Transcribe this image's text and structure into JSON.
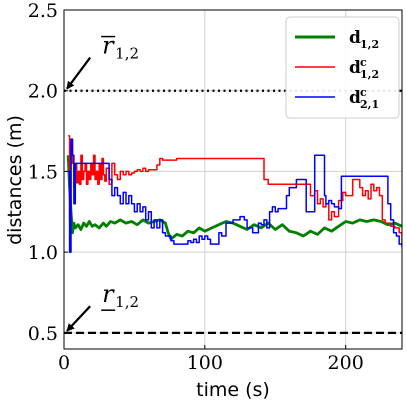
{
  "chart_data": {
    "type": "line",
    "xlabel": "time (s)",
    "ylabel": "distances (m)",
    "xlim": [
      0,
      240
    ],
    "ylim": [
      0.4,
      2.5
    ],
    "xticks": [
      "0",
      "100",
      "200"
    ],
    "xtick_values": [
      0,
      100,
      200
    ],
    "yticks": [
      "0.5",
      "1.0",
      "1.5",
      "2.0",
      "2.5"
    ],
    "ytick_values": [
      0.5,
      1.0,
      1.5,
      2.0,
      2.5
    ],
    "grid": true,
    "legend_position": "top-right",
    "legend": [
      {
        "base": "d",
        "sup": "",
        "sub": "1,2",
        "color": "#008000",
        "width": 3
      },
      {
        "base": "d",
        "sup": "c",
        "sub": "1,2",
        "color": "#ff0000",
        "width": 1.6
      },
      {
        "base": "d",
        "sup": "c",
        "sub": "2,1",
        "color": "#0000ff",
        "width": 1.6
      }
    ],
    "hlines": [
      {
        "y": 2.0,
        "style": "dotted",
        "color": "#000000"
      },
      {
        "y": 0.5,
        "style": "dashed",
        "color": "#000000"
      }
    ],
    "annotations": [
      {
        "base": "r",
        "sub": "1,2",
        "accent": "overline",
        "arrow_to": [
          0,
          2.0
        ],
        "text_at": [
          20,
          2.23
        ]
      },
      {
        "base": "r",
        "sub": "1,2",
        "accent": "underline",
        "arrow_to": [
          0,
          0.5
        ],
        "text_at": [
          20,
          0.69
        ]
      }
    ],
    "series": [
      {
        "color": "#008000",
        "width": 2.8,
        "step": false,
        "points": [
          [
            3,
            1.6
          ],
          [
            4,
            1.4
          ],
          [
            5,
            1.25
          ],
          [
            6,
            1.12
          ],
          [
            7,
            1.18
          ],
          [
            8,
            1.15
          ],
          [
            10,
            1.17
          ],
          [
            12,
            1.14
          ],
          [
            14,
            1.18
          ],
          [
            16,
            1.16
          ],
          [
            18,
            1.19
          ],
          [
            20,
            1.16
          ],
          [
            22,
            1.17
          ],
          [
            25,
            1.15
          ],
          [
            28,
            1.18
          ],
          [
            30,
            1.16
          ],
          [
            33,
            1.19
          ],
          [
            36,
            1.18
          ],
          [
            40,
            1.2
          ],
          [
            44,
            1.18
          ],
          [
            48,
            1.19
          ],
          [
            52,
            1.17
          ],
          [
            56,
            1.2
          ],
          [
            60,
            1.18
          ],
          [
            64,
            1.19
          ],
          [
            68,
            1.2
          ],
          [
            72,
            1.18
          ],
          [
            74,
            1.12
          ],
          [
            76,
            1.08
          ],
          [
            80,
            1.11
          ],
          [
            84,
            1.1
          ],
          [
            88,
            1.13
          ],
          [
            92,
            1.12
          ],
          [
            96,
            1.15
          ],
          [
            100,
            1.13
          ],
          [
            105,
            1.15
          ],
          [
            110,
            1.17
          ],
          [
            115,
            1.19
          ],
          [
            120,
            1.18
          ],
          [
            125,
            1.16
          ],
          [
            130,
            1.14
          ],
          [
            135,
            1.17
          ],
          [
            140,
            1.15
          ],
          [
            145,
            1.18
          ],
          [
            150,
            1.14
          ],
          [
            155,
            1.17
          ],
          [
            160,
            1.13
          ],
          [
            165,
            1.12
          ],
          [
            170,
            1.1
          ],
          [
            175,
            1.13
          ],
          [
            180,
            1.11
          ],
          [
            185,
            1.15
          ],
          [
            190,
            1.13
          ],
          [
            195,
            1.16
          ],
          [
            200,
            1.19
          ],
          [
            205,
            1.18
          ],
          [
            210,
            1.2
          ],
          [
            215,
            1.19
          ],
          [
            220,
            1.2
          ],
          [
            225,
            1.19
          ],
          [
            230,
            1.17
          ],
          [
            235,
            1.18
          ],
          [
            240,
            1.16
          ]
        ]
      },
      {
        "color": "#ff0000",
        "width": 1.5,
        "step": true,
        "points": [
          [
            3,
            1.72
          ],
          [
            4,
            1.2
          ],
          [
            5,
            1.68
          ],
          [
            6,
            1.55
          ],
          [
            7,
            1.4
          ],
          [
            8,
            1.55
          ],
          [
            9,
            1.43
          ],
          [
            10,
            1.5
          ],
          [
            11,
            1.42
          ],
          [
            12,
            1.6
          ],
          [
            13,
            1.45
          ],
          [
            14,
            1.5
          ],
          [
            15,
            1.55
          ],
          [
            16,
            1.42
          ],
          [
            17,
            1.5
          ],
          [
            18,
            1.45
          ],
          [
            19,
            1.55
          ],
          [
            20,
            1.48
          ],
          [
            21,
            1.6
          ],
          [
            22,
            1.45
          ],
          [
            23,
            1.5
          ],
          [
            24,
            1.42
          ],
          [
            25,
            1.55
          ],
          [
            26,
            1.45
          ],
          [
            27,
            1.58
          ],
          [
            28,
            1.48
          ],
          [
            29,
            1.44
          ],
          [
            30,
            1.52
          ],
          [
            32,
            1.42
          ],
          [
            34,
            1.55
          ],
          [
            36,
            1.48
          ],
          [
            38,
            1.45
          ],
          [
            40,
            1.5
          ],
          [
            42,
            1.48
          ],
          [
            44,
            1.5
          ],
          [
            46,
            1.48
          ],
          [
            48,
            1.49
          ],
          [
            50,
            1.5
          ],
          [
            52,
            1.51
          ],
          [
            54,
            1.5
          ],
          [
            56,
            1.52
          ],
          [
            58,
            1.5
          ],
          [
            60,
            1.51
          ],
          [
            66,
            1.54
          ],
          [
            68,
            1.58
          ],
          [
            70,
            1.57
          ],
          [
            80,
            1.58
          ],
          [
            90,
            1.58
          ],
          [
            100,
            1.58
          ],
          [
            110,
            1.58
          ],
          [
            120,
            1.58
          ],
          [
            130,
            1.58
          ],
          [
            140,
            1.58
          ],
          [
            142,
            1.45
          ],
          [
            145,
            1.42
          ],
          [
            150,
            1.42
          ],
          [
            160,
            1.42
          ],
          [
            170,
            1.42
          ],
          [
            175,
            1.35
          ],
          [
            178,
            1.38
          ],
          [
            180,
            1.3
          ],
          [
            182,
            1.33
          ],
          [
            184,
            1.28
          ],
          [
            186,
            1.3
          ],
          [
            188,
            1.2
          ],
          [
            190,
            1.25
          ],
          [
            192,
            1.22
          ],
          [
            195,
            1.32
          ],
          [
            198,
            1.37
          ],
          [
            200,
            1.35
          ],
          [
            205,
            1.45
          ],
          [
            210,
            1.4
          ],
          [
            212,
            1.35
          ],
          [
            214,
            1.38
          ],
          [
            216,
            1.33
          ],
          [
            218,
            1.42
          ],
          [
            220,
            1.38
          ],
          [
            222,
            1.4
          ],
          [
            224,
            1.35
          ],
          [
            226,
            1.2
          ],
          [
            228,
            1.18
          ],
          [
            232,
            1.16
          ],
          [
            235,
            1.15
          ],
          [
            238,
            1.12
          ],
          [
            240,
            1.05
          ]
        ]
      },
      {
        "color": "#0000ff",
        "width": 1.5,
        "step": true,
        "points": [
          [
            3,
            1.5
          ],
          [
            4,
            1.0
          ],
          [
            5,
            1.7
          ],
          [
            6,
            1.6
          ],
          [
            7,
            1.3
          ],
          [
            8,
            1.55
          ],
          [
            15,
            1.55
          ],
          [
            20,
            1.55
          ],
          [
            25,
            1.55
          ],
          [
            30,
            1.55
          ],
          [
            32,
            1.45
          ],
          [
            34,
            1.35
          ],
          [
            36,
            1.4
          ],
          [
            38,
            1.35
          ],
          [
            40,
            1.3
          ],
          [
            42,
            1.37
          ],
          [
            44,
            1.3
          ],
          [
            46,
            1.35
          ],
          [
            48,
            1.3
          ],
          [
            50,
            1.25
          ],
          [
            52,
            1.3
          ],
          [
            54,
            1.25
          ],
          [
            56,
            1.28
          ],
          [
            58,
            1.2
          ],
          [
            60,
            1.25
          ],
          [
            62,
            1.15
          ],
          [
            64,
            1.2
          ],
          [
            66,
            1.15
          ],
          [
            68,
            1.2
          ],
          [
            70,
            1.12
          ],
          [
            72,
            1.1
          ],
          [
            74,
            1.1
          ],
          [
            76,
            1.07
          ],
          [
            78,
            1.05
          ],
          [
            80,
            1.05
          ],
          [
            85,
            1.05
          ],
          [
            88,
            1.07
          ],
          [
            90,
            1.06
          ],
          [
            92,
            1.08
          ],
          [
            94,
            1.06
          ],
          [
            96,
            1.1
          ],
          [
            98,
            1.08
          ],
          [
            100,
            1.1
          ],
          [
            102,
            1.08
          ],
          [
            104,
            1.05
          ],
          [
            108,
            1.05
          ],
          [
            110,
            1.12
          ],
          [
            112,
            1.1
          ],
          [
            115,
            1.18
          ],
          [
            120,
            1.2
          ],
          [
            125,
            1.22
          ],
          [
            128,
            1.2
          ],
          [
            130,
            1.15
          ],
          [
            134,
            1.12
          ],
          [
            138,
            1.18
          ],
          [
            140,
            1.17
          ],
          [
            142,
            1.2
          ],
          [
            144,
            1.15
          ],
          [
            146,
            1.25
          ],
          [
            148,
            1.28
          ],
          [
            150,
            1.25
          ],
          [
            152,
            1.27
          ],
          [
            156,
            1.27
          ],
          [
            158,
            1.35
          ],
          [
            160,
            1.4
          ],
          [
            165,
            1.45
          ],
          [
            170,
            1.45
          ],
          [
            172,
            1.25
          ],
          [
            174,
            1.25
          ],
          [
            178,
            1.6
          ],
          [
            184,
            1.6
          ],
          [
            185,
            1.35
          ],
          [
            186,
            1.3
          ],
          [
            188,
            1.32
          ],
          [
            190,
            1.3
          ],
          [
            192,
            1.28
          ],
          [
            195,
            1.27
          ],
          [
            197,
            1.47
          ],
          [
            205,
            1.47
          ],
          [
            210,
            1.47
          ],
          [
            215,
            1.47
          ],
          [
            220,
            1.47
          ],
          [
            225,
            1.47
          ],
          [
            228,
            1.47
          ],
          [
            230,
            1.3
          ],
          [
            232,
            1.2
          ],
          [
            234,
            1.12
          ],
          [
            236,
            1.1
          ],
          [
            238,
            1.05
          ],
          [
            240,
            1.03
          ]
        ]
      }
    ]
  }
}
